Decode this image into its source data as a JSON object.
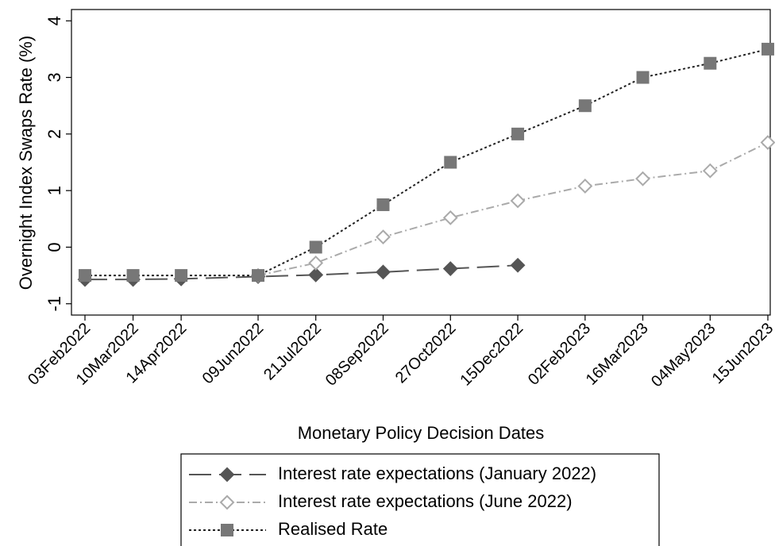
{
  "chart_data": {
    "type": "line",
    "x_label": "Monetary Policy Decision Dates",
    "y_label": "Overnight Index Swaps Rate (%)",
    "x": [
      "03Feb2022",
      "10Mar2022",
      "14Apr2022",
      "09Jun2022",
      "21Jul2022",
      "08Sep2022",
      "27Oct2022",
      "15Dec2022",
      "02Feb2023",
      "16Mar2023",
      "04May2023",
      "15Jun2023"
    ],
    "series": [
      {
        "name": "Interest rate expectations (January 2022)",
        "color": "#555555",
        "marker": "diamond",
        "filled": true,
        "dash": "28 10",
        "values": [
          -0.57,
          -0.57,
          -0.56,
          -0.52,
          -0.49,
          -0.44,
          -0.38,
          -0.32,
          null,
          null,
          null,
          null
        ]
      },
      {
        "name": "Interest rate expectations (June 2022)",
        "color": "#aaaaaa",
        "marker": "diamond",
        "filled": false,
        "dash": "10 4 2 4",
        "values": [
          null,
          null,
          null,
          -0.5,
          -0.28,
          0.18,
          0.52,
          0.82,
          1.08,
          1.21,
          1.35,
          1.85
        ]
      },
      {
        "name": "Realised Rate",
        "color": "#777777",
        "line_color": "#222222",
        "marker": "square",
        "filled": true,
        "dash": "3 3",
        "values": [
          -0.5,
          -0.5,
          -0.5,
          -0.5,
          0,
          0.75,
          1.5,
          2,
          2.5,
          3,
          3.25,
          3.5
        ]
      }
    ],
    "ylim": [
      -1.2,
      4.2
    ],
    "yticks": [
      -1,
      0,
      1,
      2,
      3,
      4
    ]
  }
}
